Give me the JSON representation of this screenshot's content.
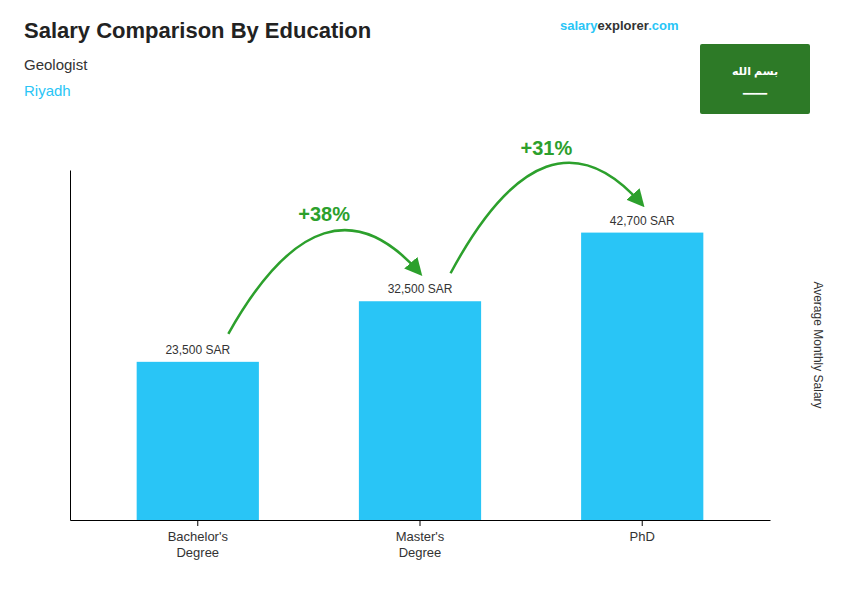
{
  "chart_data": {
    "type": "bar",
    "title": "Salary Comparison By Education",
    "subtitle": [
      "Geologist",
      "Riyadh"
    ],
    "ylabel": "Average Monthly Salary",
    "categories": [
      "Bachelor's\nDegree",
      "Master's\nDegree",
      "PhD"
    ],
    "values": [
      23500,
      32500,
      42700
    ],
    "value_labels": [
      "23,500 SAR",
      "32,500 SAR",
      "42,700 SAR"
    ],
    "data_labels": true,
    "color": "#29c5f6",
    "ylim": [
      0,
      52000
    ],
    "tick_labels": "x",
    "grid": false,
    "annotations": [
      "+38%",
      "+31%"
    ],
    "website": [
      "salary",
      "explorer",
      ".com"
    ],
    "badge": [
      "بسم الله",
      "━━━━"
    ]
  }
}
